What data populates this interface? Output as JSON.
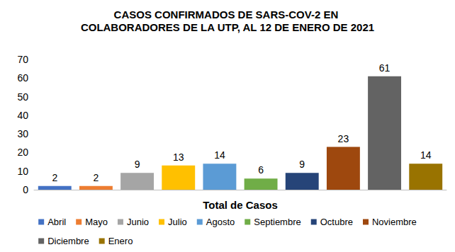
{
  "chart_data": {
    "type": "bar",
    "title": "CASOS CONFIRMADOS DE SARS-COV-2 EN COLABORADORES DE LA UTP, AL 12 DE ENERO DE 2021",
    "categories": [
      "Total de Casos"
    ],
    "series": [
      {
        "name": "Abril",
        "color": "#4472c4",
        "values": [
          2
        ]
      },
      {
        "name": "Mayo",
        "color": "#ed7d31",
        "values": [
          2
        ]
      },
      {
        "name": "Junio",
        "color": "#a5a5a5",
        "values": [
          9
        ]
      },
      {
        "name": "Julio",
        "color": "#ffc000",
        "values": [
          13
        ]
      },
      {
        "name": "Agosto",
        "color": "#5b9bd5",
        "values": [
          14
        ]
      },
      {
        "name": "Septiembre",
        "color": "#70ad47",
        "values": [
          6
        ]
      },
      {
        "name": "Octubre",
        "color": "#264478",
        "values": [
          9
        ]
      },
      {
        "name": "Noviembre",
        "color": "#9e480e",
        "values": [
          23
        ]
      },
      {
        "name": "Diciembre",
        "color": "#636363",
        "values": [
          61
        ]
      },
      {
        "name": "Enero",
        "color": "#997300",
        "values": [
          14
        ]
      }
    ],
    "ylim": [
      0,
      70
    ],
    "yticks": [
      0,
      10,
      20,
      30,
      40,
      50,
      60,
      70
    ],
    "grid": false,
    "legend": "bottom",
    "data_labels": true
  }
}
